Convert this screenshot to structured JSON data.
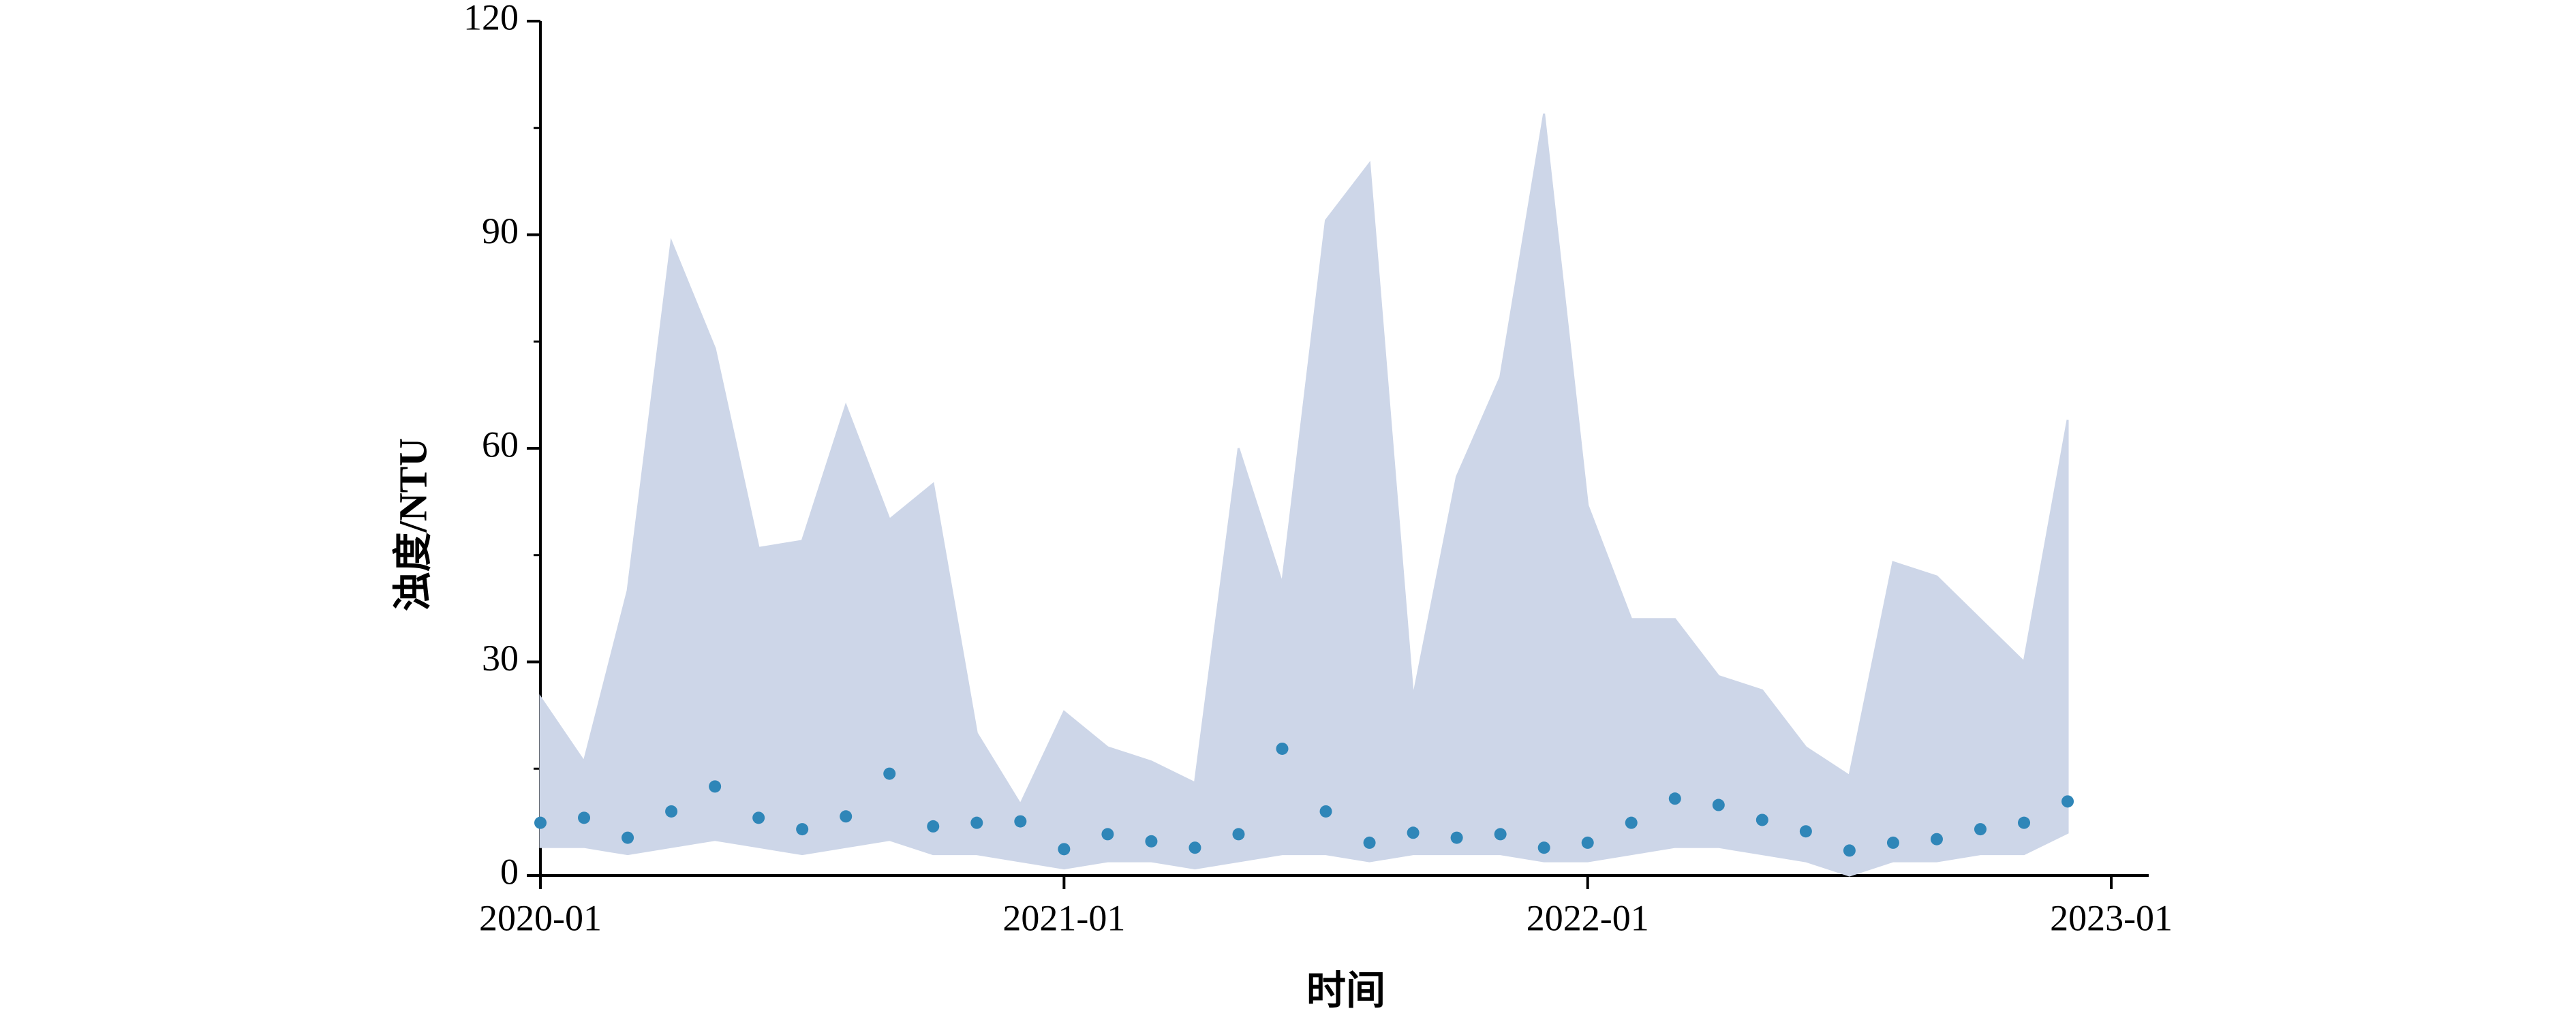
{
  "chart_data": {
    "type": "line",
    "y_label": "浊度/NTU",
    "x_label": "时间",
    "x": [
      "2020-01",
      "2020-02",
      "2020-03",
      "2020-04",
      "2020-05",
      "2020-06",
      "2020-07",
      "2020-08",
      "2020-09",
      "2020-10",
      "2020-11",
      "2020-12",
      "2021-01",
      "2021-02",
      "2021-03",
      "2021-04",
      "2021-05",
      "2021-06",
      "2021-07",
      "2021-08",
      "2021-09",
      "2021-10",
      "2021-11",
      "2021-12",
      "2022-01",
      "2022-02",
      "2022-03",
      "2022-04",
      "2022-05",
      "2022-06",
      "2022-07",
      "2022-08",
      "2022-09",
      "2022-10",
      "2022-11",
      "2022-12"
    ],
    "series": [
      {
        "color": "#cdd6e8",
        "values": [
          25,
          16,
          40,
          89,
          74,
          46,
          47,
          66,
          50,
          55,
          20,
          10,
          23,
          18,
          16,
          13,
          60,
          41,
          92,
          100,
          25,
          56,
          70,
          107,
          52,
          36,
          36,
          28,
          26,
          18,
          14,
          44,
          42,
          36,
          30,
          64
        ]
      },
      {
        "color": "#cdd6e8",
        "values": [
          4,
          4,
          3,
          4,
          5,
          4,
          3,
          4,
          5,
          3,
          3,
          2,
          1,
          2,
          2,
          1,
          2,
          3,
          3,
          2,
          3,
          3,
          3,
          2,
          2,
          3,
          4,
          4,
          3,
          2,
          0,
          2,
          2,
          3,
          3,
          6
        ]
      },
      {
        "color": "#2f86b8",
        "values": [
          7.4,
          8.1,
          5.3,
          9,
          12.5,
          8.1,
          6.5,
          8.3,
          14.3,
          6.9,
          7.4,
          7.6,
          3.7,
          5.8,
          4.8,
          3.9,
          5.8,
          17.8,
          9,
          4.6,
          6,
          5.3,
          5.8,
          3.9,
          4.6,
          7.4,
          10.8,
          9.9,
          7.8,
          6.2,
          3.5,
          4.6,
          5.1,
          6.5,
          7.4,
          10.4
        ]
      }
    ],
    "ylim": [
      0,
      120
    ],
    "yticks": [
      0,
      30,
      60,
      90,
      120
    ],
    "yminorticks": [
      15,
      45,
      75,
      105
    ],
    "xticks": [
      "2020-01",
      "2021-01",
      "2022-01",
      "2023-01"
    ]
  }
}
